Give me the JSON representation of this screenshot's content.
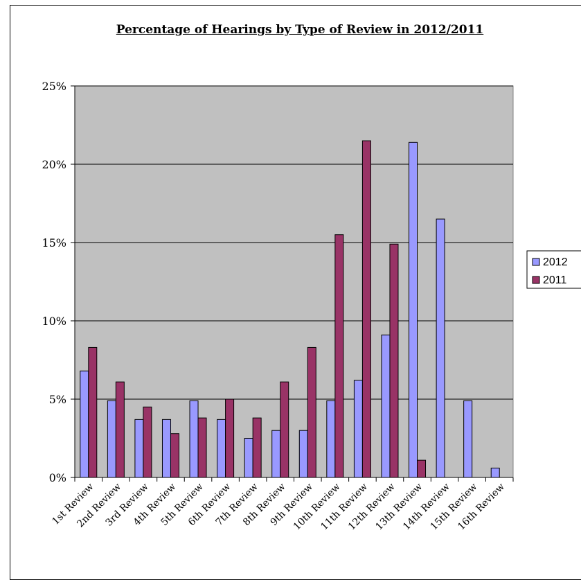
{
  "chart_data": {
    "type": "bar",
    "title": "Percentage of Hearings by Type of Review in 2012/2011",
    "categories": [
      "1st Review",
      "2nd Review",
      "3rd Review",
      "4th Review",
      "5th Review",
      "6th Review",
      "7th Review",
      "8th Review",
      "9th Review",
      "10th Review",
      "11th Review",
      "12th Review",
      "13th Review",
      "14th Review",
      "15th Review",
      "16th Review"
    ],
    "series": [
      {
        "name": "2012",
        "color": "#9999FF",
        "values": [
          6.8,
          4.9,
          3.7,
          3.7,
          4.9,
          3.7,
          2.5,
          3.0,
          3.0,
          4.9,
          6.2,
          9.1,
          21.4,
          16.5,
          4.9,
          0.6
        ]
      },
      {
        "name": "2011",
        "color": "#993366",
        "values": [
          8.3,
          6.1,
          4.5,
          2.8,
          3.8,
          5.0,
          3.8,
          6.1,
          8.3,
          15.5,
          21.5,
          14.9,
          1.1,
          0,
          0,
          0
        ]
      }
    ],
    "ylim": [
      0,
      25
    ],
    "yticks": [
      "0%",
      "5%",
      "10%",
      "15%",
      "20%",
      "25%"
    ],
    "ytick_values": [
      0,
      5,
      10,
      15,
      20,
      25
    ],
    "plot_background": "#C0C0C0",
    "grid": true,
    "legend": "right"
  }
}
